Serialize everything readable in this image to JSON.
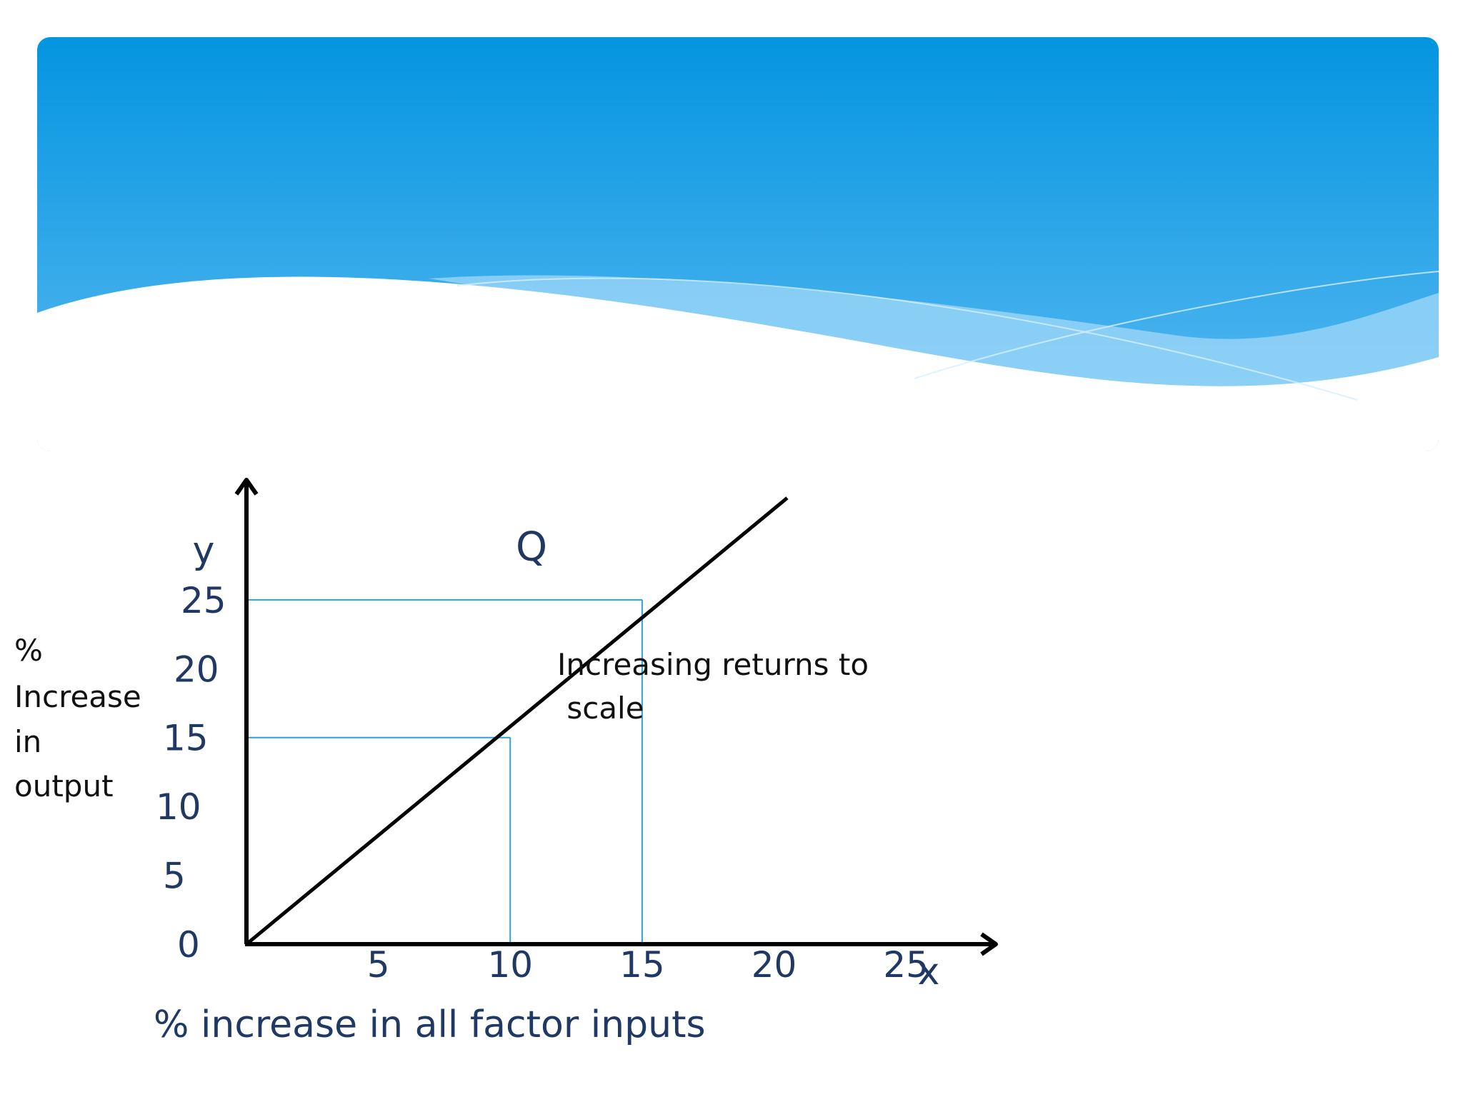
{
  "colors": {
    "banner_top": "#0495e0",
    "banner_bottom": "#5cbaf2",
    "axis": "#000000",
    "curve": "#000000",
    "guide": "#29a3dd",
    "tick_text": "#1f3864"
  },
  "chart_data": {
    "type": "line",
    "ylabel_lines": [
      "%",
      "Increase",
      "in",
      "output"
    ],
    "xlabel": "% increase in all factor inputs",
    "y_axis_letter": "y",
    "x_axis_letter": "x",
    "x_ticks": [
      5,
      10,
      15,
      20,
      25
    ],
    "y_ticks": [
      0,
      5,
      10,
      15,
      20,
      25
    ],
    "x_range": [
      0,
      28.3
    ],
    "y_range": [
      0,
      33.5
    ],
    "grid": false,
    "series": [
      {
        "name": "Q",
        "x": [
          0,
          20.5
        ],
        "y": [
          0,
          32.4
        ]
      }
    ],
    "guides": [
      {
        "x": 10,
        "y": 15
      },
      {
        "x": 15,
        "y": 25
      }
    ],
    "annotation_lines": [
      "Increasing returns to",
      " scale"
    ]
  }
}
